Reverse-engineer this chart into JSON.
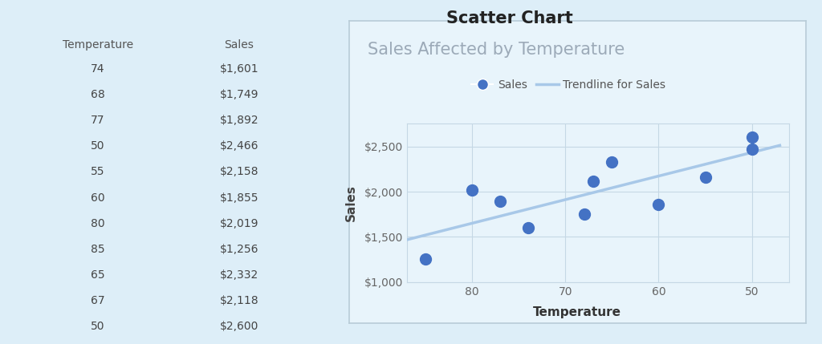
{
  "temperature": [
    74,
    68,
    77,
    50,
    55,
    60,
    80,
    85,
    65,
    67,
    50
  ],
  "sales": [
    1601,
    1749,
    1892,
    2466,
    2158,
    1855,
    2019,
    1256,
    2332,
    2118,
    2600
  ],
  "chart_title": "Sales Affected by Temperature",
  "main_title": "Scatter Chart",
  "xlabel": "Temperature",
  "ylabel": "Sales",
  "scatter_color": "#4472C4",
  "trendline_color": "#a8c8e8",
  "page_bg_color": "#ddeef8",
  "plot_bg_color": "#e8f4fb",
  "border_color": "#b8ccd8",
  "table_headers": [
    "Temperature",
    "Sales"
  ],
  "table_temp": [
    74,
    68,
    77,
    50,
    55,
    60,
    80,
    85,
    65,
    67,
    50
  ],
  "table_sales": [
    "$1,601",
    "$1,749",
    "$1,892",
    "$2,466",
    "$2,158",
    "$1,855",
    "$2,019",
    "$1,256",
    "$2,332",
    "$2,118",
    "$2,600"
  ],
  "ylim": [
    1000,
    2750
  ],
  "yticks": [
    1000,
    1500,
    2000,
    2500
  ],
  "scatter_size": 100,
  "title_color": "#9caab8",
  "tick_color": "#666666",
  "grid_color": "#c5d8e5",
  "legend_label_color": "#555555",
  "table_header_color": "#555555",
  "table_text_color": "#444444",
  "main_title_color": "#222222"
}
